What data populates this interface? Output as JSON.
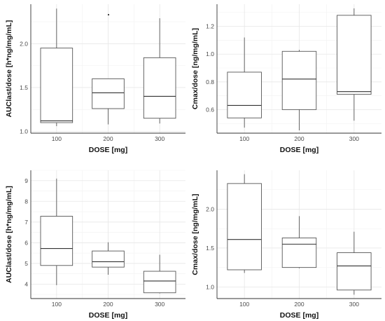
{
  "chart_data": [
    {
      "type": "boxplot",
      "xlabel": "DOSE [mg]",
      "ylabel": "AUClast/dose [h*ng/mg/mL]",
      "categories": [
        "100",
        "200",
        "300"
      ],
      "ylim": [
        0.98,
        2.45
      ],
      "yticks": [
        1.0,
        1.5,
        2.0
      ],
      "ytick_labels": [
        "1.0",
        "1.5",
        "2.0"
      ],
      "boxes": [
        {
          "min": 1.06,
          "q1": 1.1,
          "median": 1.12,
          "q3": 1.95,
          "max": 2.4
        },
        {
          "min": 1.08,
          "q1": 1.26,
          "median": 1.44,
          "q3": 1.6,
          "max": 1.6,
          "outliers": [
            2.33
          ]
        },
        {
          "min": 1.09,
          "q1": 1.15,
          "median": 1.4,
          "q3": 1.84,
          "max": 2.29
        }
      ]
    },
    {
      "type": "boxplot",
      "xlabel": "DOSE [mg]",
      "ylabel": "Cmax/dose [ng/mg/mL]",
      "categories": [
        "100",
        "200",
        "300"
      ],
      "ylim": [
        0.43,
        1.36
      ],
      "yticks": [
        0.6,
        0.8,
        1.0,
        1.2
      ],
      "ytick_labels": [
        "0.6",
        "0.8",
        "1.0",
        "1.2"
      ],
      "boxes": [
        {
          "min": 0.47,
          "q1": 0.54,
          "median": 0.63,
          "q3": 0.87,
          "max": 1.12
        },
        {
          "min": 0.45,
          "q1": 0.6,
          "median": 0.82,
          "q3": 1.02,
          "max": 1.03
        },
        {
          "min": 0.52,
          "q1": 0.71,
          "median": 0.73,
          "q3": 1.28,
          "max": 1.33
        }
      ]
    },
    {
      "type": "boxplot",
      "xlabel": "DOSE [mg]",
      "ylabel": "AUClast/dose [h*ng/mg/mL]",
      "categories": [
        "100",
        "200",
        "300"
      ],
      "ylim": [
        3.3,
        9.5
      ],
      "yticks": [
        4,
        5,
        6,
        7,
        8,
        9
      ],
      "ytick_labels": [
        "4",
        "5",
        "6",
        "7",
        "8",
        "9"
      ],
      "boxes": [
        {
          "min": 3.95,
          "q1": 4.9,
          "median": 5.72,
          "q3": 7.28,
          "max": 9.1
        },
        {
          "min": 4.45,
          "q1": 4.82,
          "median": 5.08,
          "q3": 5.6,
          "max": 6.02
        },
        {
          "min": 3.55,
          "q1": 3.58,
          "median": 4.15,
          "q3": 4.62,
          "max": 5.42
        }
      ]
    },
    {
      "type": "boxplot",
      "xlabel": "DOSE [mg]",
      "ylabel": "Cmax/dose [ng/mg/mL]",
      "categories": [
        "100",
        "200",
        "300"
      ],
      "ylim": [
        0.85,
        2.5
      ],
      "yticks": [
        1.0,
        1.5,
        2.0
      ],
      "ytick_labels": [
        "1.0",
        "1.5",
        "2.0"
      ],
      "boxes": [
        {
          "min": 1.18,
          "q1": 1.22,
          "median": 1.61,
          "q3": 2.33,
          "max": 2.45
        },
        {
          "min": 1.24,
          "q1": 1.25,
          "median": 1.55,
          "q3": 1.63,
          "max": 1.91
        },
        {
          "min": 0.9,
          "q1": 0.96,
          "median": 1.27,
          "q3": 1.44,
          "max": 1.71
        }
      ]
    }
  ]
}
